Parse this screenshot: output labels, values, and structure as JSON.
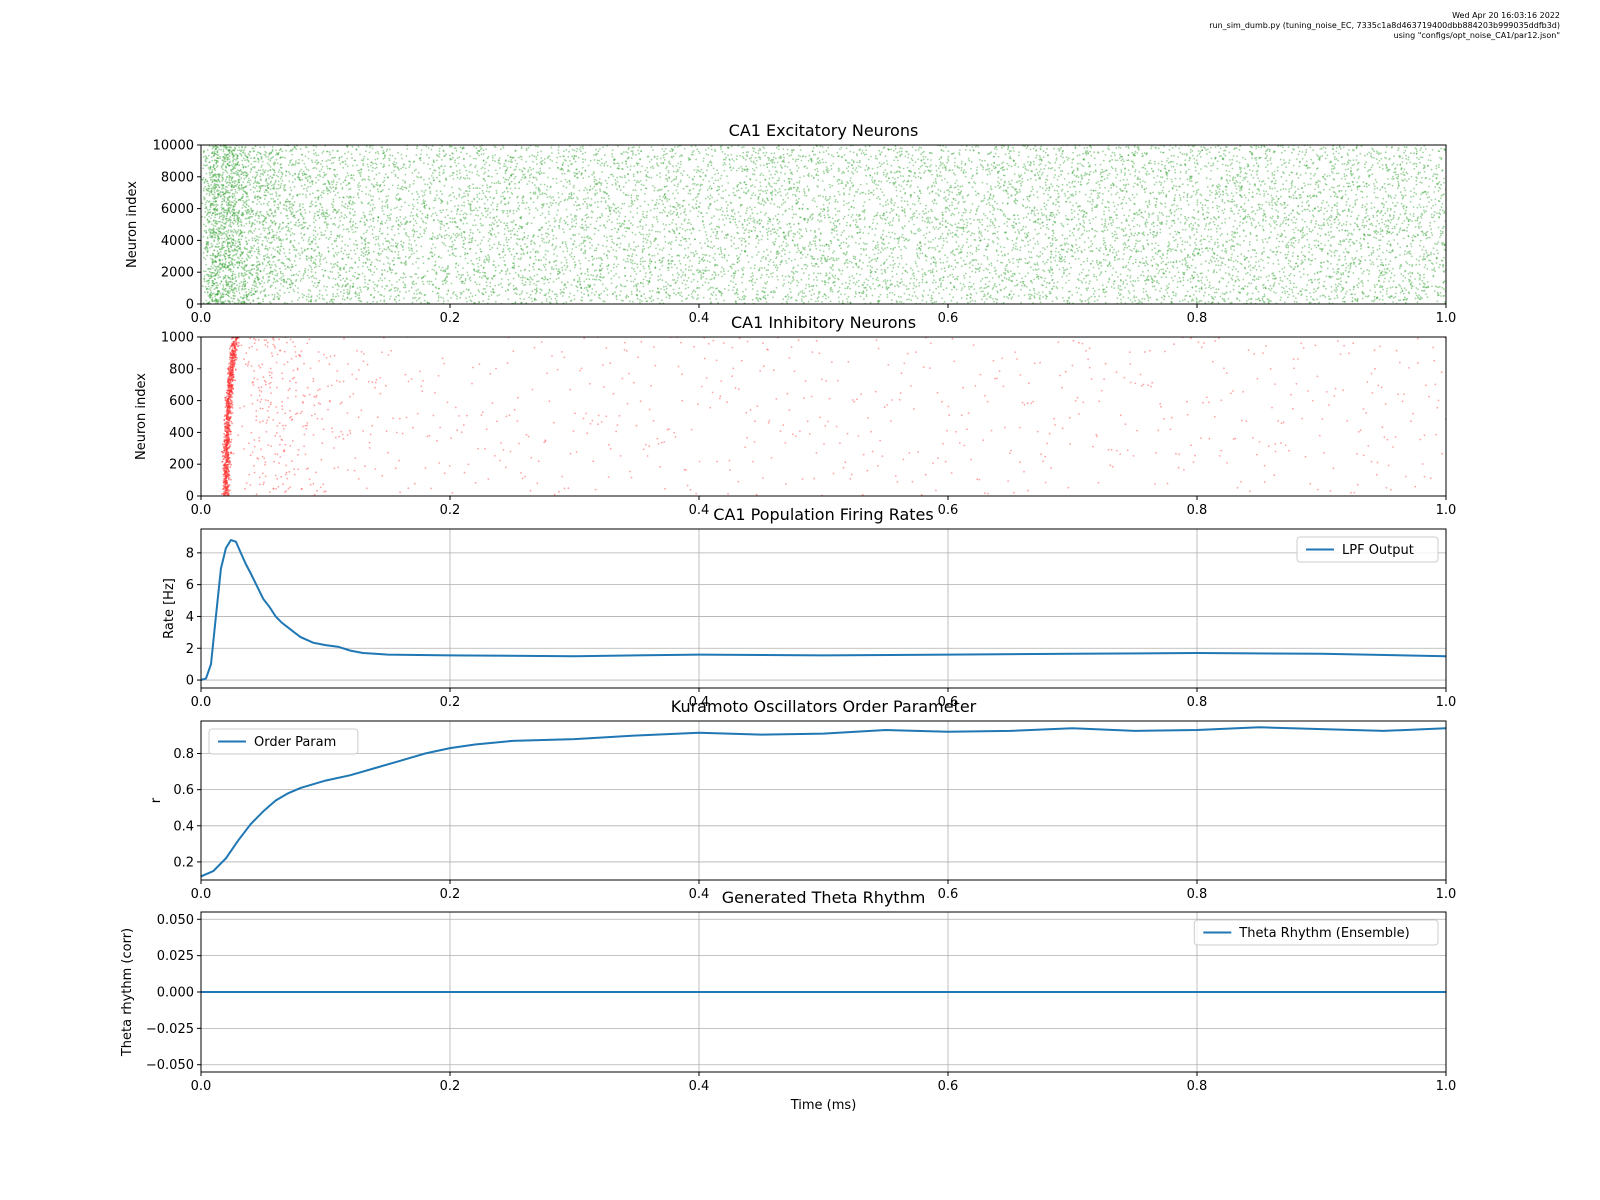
{
  "meta": {
    "line1": "Wed Apr 20 16:03:16 2022",
    "line2": "run_sim_dumb.py (tuning_noise_EC, 7335c1a8d463719400dbb884203b999035ddfb3d)",
    "line3": "using \"configs/opt_noise_CA1/par12.json\""
  },
  "colors": {
    "excitatory": "#2ca02c",
    "inhibitory": "#ff3333",
    "line": "#1f77b4",
    "grid": "#b0b0b0"
  },
  "chart_data": [
    {
      "type": "scatter",
      "title": "CA1 Excitatory Neurons",
      "xlabel": "",
      "ylabel": "Neuron index",
      "xlim": [
        0,
        1.0
      ],
      "ylim": [
        0,
        10000
      ],
      "xticks": [
        "0.0",
        "0.2",
        "0.4",
        "0.6",
        "0.8",
        "1.0"
      ],
      "yticks": [
        "0",
        "2000",
        "4000",
        "6000",
        "8000",
        "10000"
      ],
      "grid": false,
      "description_series": "spike raster",
      "color": "excitatory",
      "density_profile": {
        "x": [
          0.0,
          0.005,
          0.01,
          0.02,
          0.03,
          0.05,
          0.08,
          0.12,
          0.2,
          0.4,
          0.6,
          0.8,
          1.0
        ],
        "rate": [
          0.2,
          2.5,
          3.0,
          2.8,
          2.2,
          1.3,
          0.9,
          0.75,
          0.7,
          0.7,
          0.7,
          0.72,
          0.72
        ]
      }
    },
    {
      "type": "scatter",
      "title": "CA1 Inhibitory Neurons",
      "xlabel": "",
      "ylabel": "Neuron index",
      "xlim": [
        0,
        1.0
      ],
      "ylim": [
        0,
        1000
      ],
      "xticks": [
        "0.0",
        "0.2",
        "0.4",
        "0.6",
        "0.8",
        "1.0"
      ],
      "yticks": [
        "0",
        "200",
        "400",
        "600",
        "800",
        "1000"
      ],
      "grid": false,
      "color": "inhibitory",
      "burst": {
        "x_center": 0.022,
        "x_width": 0.004
      },
      "density_profile": {
        "x": [
          0.0,
          0.03,
          0.04,
          0.05,
          0.06,
          0.08,
          0.1,
          0.15,
          0.2,
          0.4,
          0.6,
          0.8,
          1.0
        ],
        "rate": [
          0.0,
          0.1,
          1.0,
          1.6,
          1.4,
          0.9,
          0.5,
          0.25,
          0.2,
          0.22,
          0.2,
          0.2,
          0.22
        ]
      }
    },
    {
      "type": "line",
      "title": "CA1 Population Firing Rates",
      "xlabel": "",
      "ylabel": "Rate [Hz]",
      "xlim": [
        0,
        1.0
      ],
      "ylim": [
        -0.5,
        9.5
      ],
      "xticks": [
        "0.0",
        "0.2",
        "0.4",
        "0.6",
        "0.8",
        "1.0"
      ],
      "ytick_values": [
        0,
        2,
        4,
        6,
        8
      ],
      "yticks": [
        "0",
        "2",
        "4",
        "6",
        "8"
      ],
      "grid": true,
      "legend": "top-right",
      "series": [
        {
          "name": "LPF Output",
          "x": [
            0.0,
            0.004,
            0.008,
            0.012,
            0.016,
            0.02,
            0.024,
            0.028,
            0.032,
            0.036,
            0.04,
            0.045,
            0.05,
            0.055,
            0.06,
            0.065,
            0.07,
            0.075,
            0.08,
            0.09,
            0.1,
            0.11,
            0.12,
            0.13,
            0.14,
            0.15,
            0.2,
            0.3,
            0.4,
            0.5,
            0.6,
            0.7,
            0.8,
            0.9,
            1.0
          ],
          "y": [
            0.0,
            0.1,
            1.0,
            4.0,
            7.0,
            8.3,
            8.8,
            8.7,
            8.0,
            7.3,
            6.7,
            5.9,
            5.1,
            4.6,
            4.0,
            3.6,
            3.3,
            3.0,
            2.7,
            2.35,
            2.2,
            2.1,
            1.85,
            1.7,
            1.65,
            1.6,
            1.55,
            1.5,
            1.6,
            1.55,
            1.6,
            1.65,
            1.7,
            1.65,
            1.5
          ]
        }
      ]
    },
    {
      "type": "line",
      "title": "Kuramoto Oscillators Order Parameter",
      "xlabel": "",
      "ylabel": "r",
      "xlim": [
        0,
        1.0
      ],
      "ylim": [
        0.1,
        0.98
      ],
      "xticks": [
        "0.0",
        "0.2",
        "0.4",
        "0.6",
        "0.8",
        "1.0"
      ],
      "ytick_values": [
        0.2,
        0.4,
        0.6,
        0.8
      ],
      "yticks": [
        "0.2",
        "0.4",
        "0.6",
        "0.8"
      ],
      "grid": true,
      "legend": "top-left",
      "series": [
        {
          "name": "Order Param",
          "x": [
            0.0,
            0.01,
            0.02,
            0.03,
            0.04,
            0.05,
            0.06,
            0.07,
            0.08,
            0.1,
            0.12,
            0.14,
            0.16,
            0.18,
            0.2,
            0.22,
            0.25,
            0.3,
            0.35,
            0.4,
            0.45,
            0.5,
            0.55,
            0.6,
            0.65,
            0.7,
            0.75,
            0.8,
            0.85,
            0.9,
            0.95,
            1.0
          ],
          "y": [
            0.12,
            0.15,
            0.22,
            0.32,
            0.41,
            0.48,
            0.54,
            0.58,
            0.61,
            0.65,
            0.68,
            0.72,
            0.76,
            0.8,
            0.83,
            0.85,
            0.87,
            0.88,
            0.9,
            0.915,
            0.905,
            0.91,
            0.93,
            0.92,
            0.925,
            0.94,
            0.925,
            0.93,
            0.945,
            0.935,
            0.925,
            0.94
          ]
        }
      ]
    },
    {
      "type": "line",
      "title": "Generated Theta Rhythm",
      "xlabel": "Time (ms)",
      "ylabel": "Theta rhythm (corr)",
      "xlim": [
        0,
        1.0
      ],
      "ylim": [
        -0.055,
        0.055
      ],
      "xticks": [
        "0.0",
        "0.2",
        "0.4",
        "0.6",
        "0.8",
        "1.0"
      ],
      "ytick_values": [
        -0.05,
        -0.025,
        0.0,
        0.025,
        0.05
      ],
      "yticks": [
        "−0.050",
        "−0.025",
        "0.000",
        "0.025",
        "0.050"
      ],
      "grid": true,
      "legend": "top-right",
      "series": [
        {
          "name": "Theta Rhythm (Ensemble)",
          "x": [
            0.0,
            1.0
          ],
          "y": [
            0.0,
            0.0
          ]
        }
      ]
    }
  ]
}
